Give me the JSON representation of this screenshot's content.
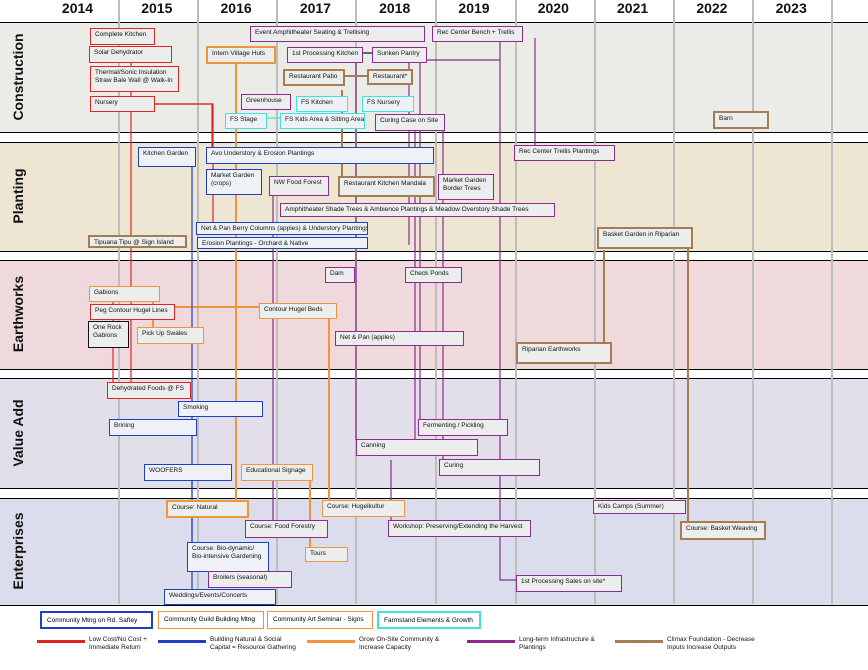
{
  "years": [
    "2014",
    "2015",
    "2016",
    "2017",
    "2018",
    "2019",
    "2020",
    "2021",
    "2022",
    "2023"
  ],
  "sections": [
    "Construction",
    "Planting",
    "Earthworks",
    "Value Add",
    "Enterprises"
  ],
  "colors": {
    "red": "#e02424",
    "blue": "#1c3fc4",
    "orange": "#f0953c",
    "purple": "#8b2b8e",
    "brown": "#a67c52",
    "cyan": "#3ee2e2",
    "black": "#111111"
  },
  "boxes": [
    {
      "text": "Complete Kitchen",
      "color": "red"
    },
    {
      "text": "Solar Dehydrator",
      "color": "red"
    },
    {
      "text": "Thermal/Sonic Insulation\nStraw Bale Wall @ Walk-In",
      "color": "red"
    },
    {
      "text": "Nursery",
      "color": "red"
    },
    {
      "text": "Intern Village Huts",
      "color": "orange",
      "thick": true
    },
    {
      "text": "Event Amphitheater Seating & Trellising",
      "color": "purple"
    },
    {
      "text": "Rec Center Bench + Trellis",
      "color": "purple"
    },
    {
      "text": "1st Processing Kitchen",
      "color": "purple"
    },
    {
      "text": "Sunken Pantry",
      "color": "purple"
    },
    {
      "text": "Restaurant Patio",
      "color": "brown",
      "thick": true
    },
    {
      "text": "Restaurant*",
      "color": "brown",
      "thick": true
    },
    {
      "text": "Greenhouse",
      "color": "purple"
    },
    {
      "text": "FS Kitchen",
      "color": "cyan"
    },
    {
      "text": "FS Nursery",
      "color": "cyan"
    },
    {
      "text": "FS Stage",
      "color": "cyan"
    },
    {
      "text": "FS Kids Area & Sitting Area",
      "color": "cyan"
    },
    {
      "text": "Curing Case on Site",
      "color": "purple"
    },
    {
      "text": "Barn",
      "color": "brown",
      "thick": true
    },
    {
      "text": "Kitchen Garden",
      "color": "blue"
    },
    {
      "text": "Avo Understory & Erosion Plantings",
      "color": "blue"
    },
    {
      "text": "Rec Center Trellis Plantings",
      "color": "purple"
    },
    {
      "text": "Market Garden\n(crops)",
      "color": "blue"
    },
    {
      "text": "NW Food Forest",
      "color": "purple"
    },
    {
      "text": "Restaurant Kitchen Mandala",
      "color": "brown",
      "thick": true
    },
    {
      "text": "Market Garden\nBorder Trees",
      "color": "purple"
    },
    {
      "text": "Amphitheater Shade Trees & Ambience Plantings & Meadow Overstory Shade Trees",
      "color": "purple"
    },
    {
      "text": "Net & Pan Berry Columns (apples) & Understory Plantings",
      "color": "blue"
    },
    {
      "text": "Erosion Plantings - Orchard & Native",
      "color": "blue"
    },
    {
      "text": "Tipuana Tipu @ Sign Island",
      "color": "brown",
      "thick": true
    },
    {
      "text": "Basket Garden in Riparian",
      "color": "brown",
      "thick": true
    },
    {
      "text": "Dam",
      "color": "purple"
    },
    {
      "text": "Check Ponds",
      "color": "purple"
    },
    {
      "text": "Gabions",
      "color": "orange"
    },
    {
      "text": "Peg Contour Hugel Lines",
      "color": "red"
    },
    {
      "text": "Contour Hugel Beds",
      "color": "orange"
    },
    {
      "text": "One Rock\nGabions",
      "color": "black"
    },
    {
      "text": "Pick Up Swales",
      "color": "orange"
    },
    {
      "text": "Net & Pan (apples)",
      "color": "purple"
    },
    {
      "text": "Riparian Earthworks",
      "color": "brown",
      "thick": true
    },
    {
      "text": "Dehydrated Foods @ FS",
      "color": "red"
    },
    {
      "text": "Smoking",
      "color": "blue"
    },
    {
      "text": "Brining",
      "color": "blue"
    },
    {
      "text": "Fermenting / Pickling",
      "color": "purple"
    },
    {
      "text": "Canning",
      "color": "purple"
    },
    {
      "text": "Curing",
      "color": "purple"
    },
    {
      "text": "WOOFERS",
      "color": "blue"
    },
    {
      "text": "Educational Signage",
      "color": "orange"
    },
    {
      "text": "Course: Natural",
      "color": "orange",
      "thick": true
    },
    {
      "text": "Course: Hugelkultur",
      "color": "orange"
    },
    {
      "text": "Kids Camps (Summer)",
      "color": "purple"
    },
    {
      "text": "Course: Food Forestry",
      "color": "purple"
    },
    {
      "text": "Workshop: Preserving/Extending the Harvest",
      "color": "purple"
    },
    {
      "text": "Course: Basket Weaving",
      "color": "brown",
      "thick": true
    },
    {
      "text": "Course: Bio-dynamic/\nBio-intensive Gardening",
      "color": "blue"
    },
    {
      "text": "Tours",
      "color": "orange"
    },
    {
      "text": "Broilers (seasonal)",
      "color": "purple"
    },
    {
      "text": "Weddings/Events/Concerts",
      "color": "blue"
    },
    {
      "text": "1st Processing Sales on site*",
      "color": "purple"
    }
  ],
  "legend_boxes": [
    {
      "text": "Community Mtng on Rd. Saftey",
      "color": "blue"
    },
    {
      "text": "Community Guild Building Mtng",
      "color": "orange"
    },
    {
      "text": "Community Art Seminar - Signs",
      "color": "orange"
    },
    {
      "text": "Farmstand Elements & Growth",
      "color": "cyan"
    }
  ],
  "legend_lines": [
    {
      "text": "Low Cost/No Cost +\nImmediate Return",
      "color": "red"
    },
    {
      "text": "Building Natural & Social\nCapital = Resource Gathering",
      "color": "blue"
    },
    {
      "text": "Grow On-Site Community &\nIncrease Capacity",
      "color": "orange"
    },
    {
      "text": "Long-term Infrastructure &\nPlantings",
      "color": "purple"
    },
    {
      "text": "Climax Foundation - Decrease\nInputs Increase Outputs",
      "color": "brown"
    }
  ]
}
